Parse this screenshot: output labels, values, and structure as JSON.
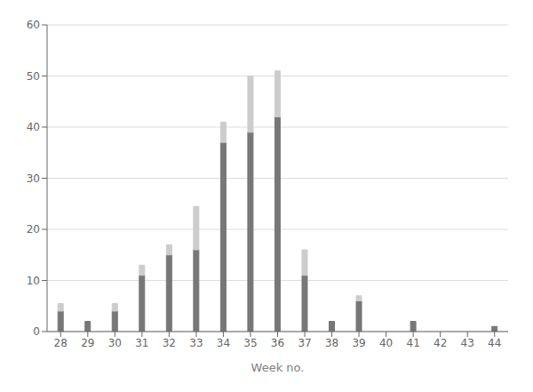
{
  "chart_data": {
    "type": "bar",
    "stacked": true,
    "xlabel": "Week no.",
    "categories": [
      "28",
      "29",
      "30",
      "31",
      "32",
      "33",
      "34",
      "35",
      "36",
      "37",
      "38",
      "39",
      "40",
      "41",
      "42",
      "43",
      "44"
    ],
    "series": [
      {
        "color": "#777777",
        "values": [
          4,
          2,
          4,
          11,
          15,
          16,
          37,
          39,
          42,
          11,
          2,
          6,
          0,
          2,
          0,
          0,
          1
        ]
      },
      {
        "color": "#cccccc",
        "values": [
          1.5,
          0,
          1.5,
          2,
          2,
          8.5,
          4,
          11,
          9,
          5,
          0,
          1,
          0,
          0,
          0,
          0,
          0
        ]
      }
    ],
    "ylim": [
      0,
      60
    ],
    "yticks": [
      0,
      10,
      20,
      30,
      40,
      50,
      60
    ],
    "grid": true
  }
}
